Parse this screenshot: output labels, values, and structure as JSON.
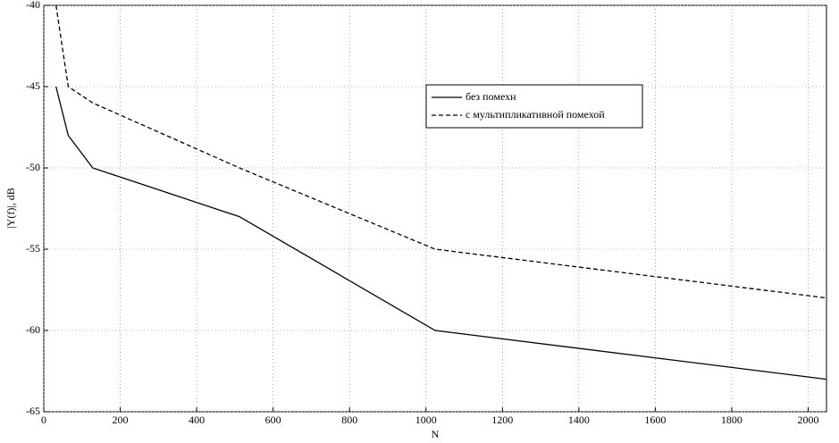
{
  "chart_data": {
    "type": "line",
    "x_label": "N",
    "y_label": "|Y(f)|,  dB",
    "xlim": [
      0,
      2048
    ],
    "xticks": [
      0,
      200,
      400,
      600,
      800,
      1000,
      1200,
      1400,
      1600,
      1800,
      2000
    ],
    "ylim": [
      -65,
      -40
    ],
    "yticks": [
      -65,
      -60,
      -55,
      -50,
      -45,
      -40
    ],
    "grid": true,
    "legend": "upper-center",
    "series": [
      {
        "name": "без помехн",
        "color": "#000000",
        "dash": "solid",
        "x": [
          32,
          64,
          128,
          512,
          1024,
          2048
        ],
        "values": [
          -45,
          -48,
          -50,
          -53,
          -60,
          -63
        ]
      },
      {
        "name": "с мультипликативной помехой",
        "color": "#000000",
        "dash": "dashed",
        "x": [
          32,
          64,
          128,
          512,
          1024,
          2048
        ],
        "values": [
          -40,
          -45,
          -46,
          -50,
          -55,
          -58
        ]
      }
    ]
  }
}
